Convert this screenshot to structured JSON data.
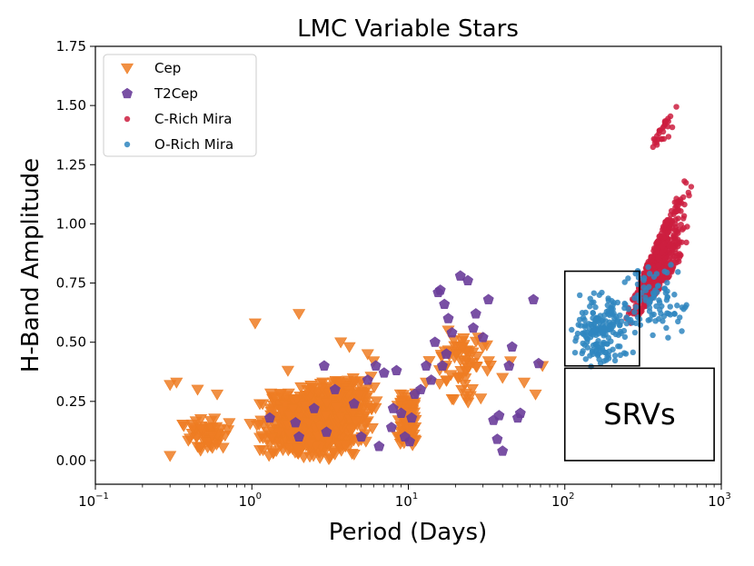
{
  "chart_data": {
    "type": "scatter",
    "title": "LMC Variable Stars",
    "xlabel": "Period (Days)",
    "ylabel": "H-Band Amplitude",
    "xscale": "log",
    "xlim": [
      0.1,
      1000
    ],
    "ylim": [
      -0.1,
      1.75
    ],
    "x_ticks": [
      {
        "base": "10",
        "exp": "−1",
        "value": 0.1
      },
      {
        "base": "10",
        "exp": "0",
        "value": 1
      },
      {
        "base": "10",
        "exp": "1",
        "value": 10
      },
      {
        "base": "10",
        "exp": "2",
        "value": 100
      },
      {
        "base": "10",
        "exp": "3",
        "value": 1000
      }
    ],
    "y_ticks": [
      {
        "label": "0.00",
        "value": 0.0
      },
      {
        "label": "0.25",
        "value": 0.25
      },
      {
        "label": "0.50",
        "value": 0.5
      },
      {
        "label": "0.75",
        "value": 0.75
      },
      {
        "label": "1.00",
        "value": 1.0
      },
      {
        "label": "1.25",
        "value": 1.25
      },
      {
        "label": "1.50",
        "value": 1.5
      },
      {
        "label": "1.75",
        "value": 1.75
      }
    ],
    "legend_position": "top-left",
    "series": [
      {
        "name": "Cep",
        "marker": "triangle-down",
        "color": "#ee7d23",
        "clusters": [
          {
            "x_range": [
              0.9,
              6.5
            ],
            "y_range": [
              0.0,
              0.3
            ],
            "count": 700
          },
          {
            "x_range": [
              1.7,
              8.0
            ],
            "y_range": [
              0.15,
              0.36
            ],
            "count": 180
          },
          {
            "x_range": [
              8.0,
              12.0
            ],
            "y_range": [
              0.05,
              0.3
            ],
            "count": 90
          },
          {
            "x_range": [
              0.28,
              0.95
            ],
            "y_range": [
              0.02,
              0.2
            ],
            "count": 55
          },
          {
            "x_range": [
              12.0,
              45.0
            ],
            "y_range": [
              0.22,
              0.58
            ],
            "count": 60
          }
        ],
        "points": [
          {
            "x": 0.3,
            "y": 0.32
          },
          {
            "x": 0.33,
            "y": 0.33
          },
          {
            "x": 0.3,
            "y": 0.02
          },
          {
            "x": 0.45,
            "y": 0.3
          },
          {
            "x": 0.6,
            "y": 0.28
          },
          {
            "x": 1.05,
            "y": 0.58
          },
          {
            "x": 1.7,
            "y": 0.38
          },
          {
            "x": 2.0,
            "y": 0.62
          },
          {
            "x": 3.7,
            "y": 0.5
          },
          {
            "x": 4.2,
            "y": 0.48
          },
          {
            "x": 5.5,
            "y": 0.45
          },
          {
            "x": 6.0,
            "y": 0.42
          },
          {
            "x": 13.0,
            "y": 0.33
          },
          {
            "x": 18.0,
            "y": 0.55
          },
          {
            "x": 28.0,
            "y": 0.52
          },
          {
            "x": 30.0,
            "y": 0.48
          },
          {
            "x": 32.0,
            "y": 0.38
          },
          {
            "x": 40.0,
            "y": 0.35
          },
          {
            "x": 45.0,
            "y": 0.42
          },
          {
            "x": 55.0,
            "y": 0.33
          },
          {
            "x": 65.0,
            "y": 0.28
          },
          {
            "x": 72.0,
            "y": 0.4
          }
        ]
      },
      {
        "name": "T2Cep",
        "marker": "pentagon",
        "color": "#6a3d9a",
        "points": [
          {
            "x": 1.3,
            "y": 0.18
          },
          {
            "x": 1.9,
            "y": 0.16
          },
          {
            "x": 2.5,
            "y": 0.22
          },
          {
            "x": 2.9,
            "y": 0.4
          },
          {
            "x": 3.4,
            "y": 0.3
          },
          {
            "x": 4.5,
            "y": 0.24
          },
          {
            "x": 5.5,
            "y": 0.34
          },
          {
            "x": 6.2,
            "y": 0.4
          },
          {
            "x": 7.0,
            "y": 0.37
          },
          {
            "x": 7.8,
            "y": 0.14
          },
          {
            "x": 8.4,
            "y": 0.38
          },
          {
            "x": 9.0,
            "y": 0.2
          },
          {
            "x": 9.5,
            "y": 0.1
          },
          {
            "x": 10.2,
            "y": 0.08
          },
          {
            "x": 11.0,
            "y": 0.28
          },
          {
            "x": 12.0,
            "y": 0.3
          },
          {
            "x": 13.0,
            "y": 0.4
          },
          {
            "x": 14.0,
            "y": 0.34
          },
          {
            "x": 14.8,
            "y": 0.5
          },
          {
            "x": 15.5,
            "y": 0.71
          },
          {
            "x": 16.0,
            "y": 0.72
          },
          {
            "x": 17.0,
            "y": 0.66
          },
          {
            "x": 18.0,
            "y": 0.6
          },
          {
            "x": 19.0,
            "y": 0.54
          },
          {
            "x": 21.5,
            "y": 0.78
          },
          {
            "x": 24.0,
            "y": 0.76
          },
          {
            "x": 26.0,
            "y": 0.56
          },
          {
            "x": 27.0,
            "y": 0.62
          },
          {
            "x": 30.0,
            "y": 0.52
          },
          {
            "x": 32.5,
            "y": 0.68
          },
          {
            "x": 35.0,
            "y": 0.17
          },
          {
            "x": 37.0,
            "y": 0.09
          },
          {
            "x": 38.0,
            "y": 0.19
          },
          {
            "x": 40.0,
            "y": 0.04
          },
          {
            "x": 44.0,
            "y": 0.4
          },
          {
            "x": 46.0,
            "y": 0.48
          },
          {
            "x": 50.0,
            "y": 0.18
          },
          {
            "x": 52.0,
            "y": 0.2
          },
          {
            "x": 63.0,
            "y": 0.68
          },
          {
            "x": 68.0,
            "y": 0.41
          },
          {
            "x": 3.0,
            "y": 0.12
          },
          {
            "x": 2.0,
            "y": 0.1
          },
          {
            "x": 5.0,
            "y": 0.1
          },
          {
            "x": 6.5,
            "y": 0.06
          },
          {
            "x": 8.0,
            "y": 0.22
          },
          {
            "x": 10.5,
            "y": 0.18
          },
          {
            "x": 16.5,
            "y": 0.4
          },
          {
            "x": 17.5,
            "y": 0.45
          }
        ]
      },
      {
        "name": "C-Rich Mira",
        "marker": "circle",
        "color": "#cc1f3f",
        "clusters": [
          {
            "x_range": [
              230,
              680
            ],
            "y_range": [
              0.45,
              1.3
            ],
            "count": 520
          },
          {
            "x_range": [
              320,
              580
            ],
            "y_range": [
              1.25,
              1.56
            ],
            "count": 30
          }
        ]
      },
      {
        "name": "O-Rich Mira",
        "marker": "circle",
        "color": "#2f86c0",
        "clusters": [
          {
            "x_range": [
              100,
              300
            ],
            "y_range": [
              0.38,
              0.72
            ],
            "count": 190
          },
          {
            "x_range": [
              200,
              720
            ],
            "y_range": [
              0.5,
              0.88
            ],
            "count": 90
          }
        ]
      }
    ],
    "annotations": {
      "srv_label": "SRVs",
      "boxes": [
        {
          "name": "srv-region",
          "x_range": [
            100,
            900
          ],
          "y_range": [
            0.0,
            0.39
          ]
        },
        {
          "name": "overlap-region",
          "x_range": [
            100,
            300
          ],
          "y_range": [
            0.4,
            0.8
          ]
        }
      ]
    }
  }
}
